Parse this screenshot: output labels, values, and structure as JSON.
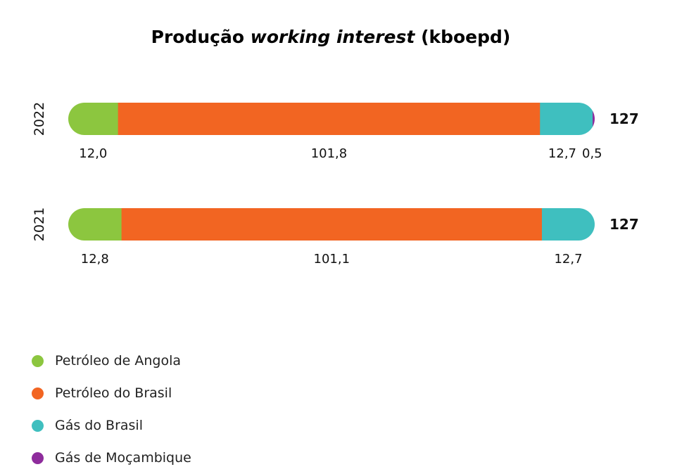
{
  "chart_data": {
    "type": "bar",
    "orientation": "horizontal",
    "stacked": true,
    "title_main": "Produção",
    "title_italic": "working interest",
    "title_unit": "(kboepd)",
    "categories": [
      "2022",
      "2021"
    ],
    "series": [
      {
        "name": "Petróleo de Angola",
        "color": "#8cc63f",
        "values": [
          12.0,
          12.8
        ],
        "labels": [
          "12,0",
          "12,8"
        ]
      },
      {
        "name": "Petróleo do Brasil",
        "color": "#f26522",
        "values": [
          101.8,
          101.1
        ],
        "labels": [
          "101,8",
          "101,1"
        ]
      },
      {
        "name": "Gás do Brasil",
        "color": "#3fbfbf",
        "values": [
          12.7,
          12.7
        ],
        "labels": [
          "12,7",
          "12,7"
        ]
      },
      {
        "name": "Gás de Moçambique",
        "color": "#8e2c9c",
        "values": [
          0.5,
          0
        ],
        "labels": [
          "0,5",
          ""
        ]
      }
    ],
    "totals": [
      "127",
      "127"
    ],
    "legend_position": "bottom-left",
    "grid": false
  }
}
